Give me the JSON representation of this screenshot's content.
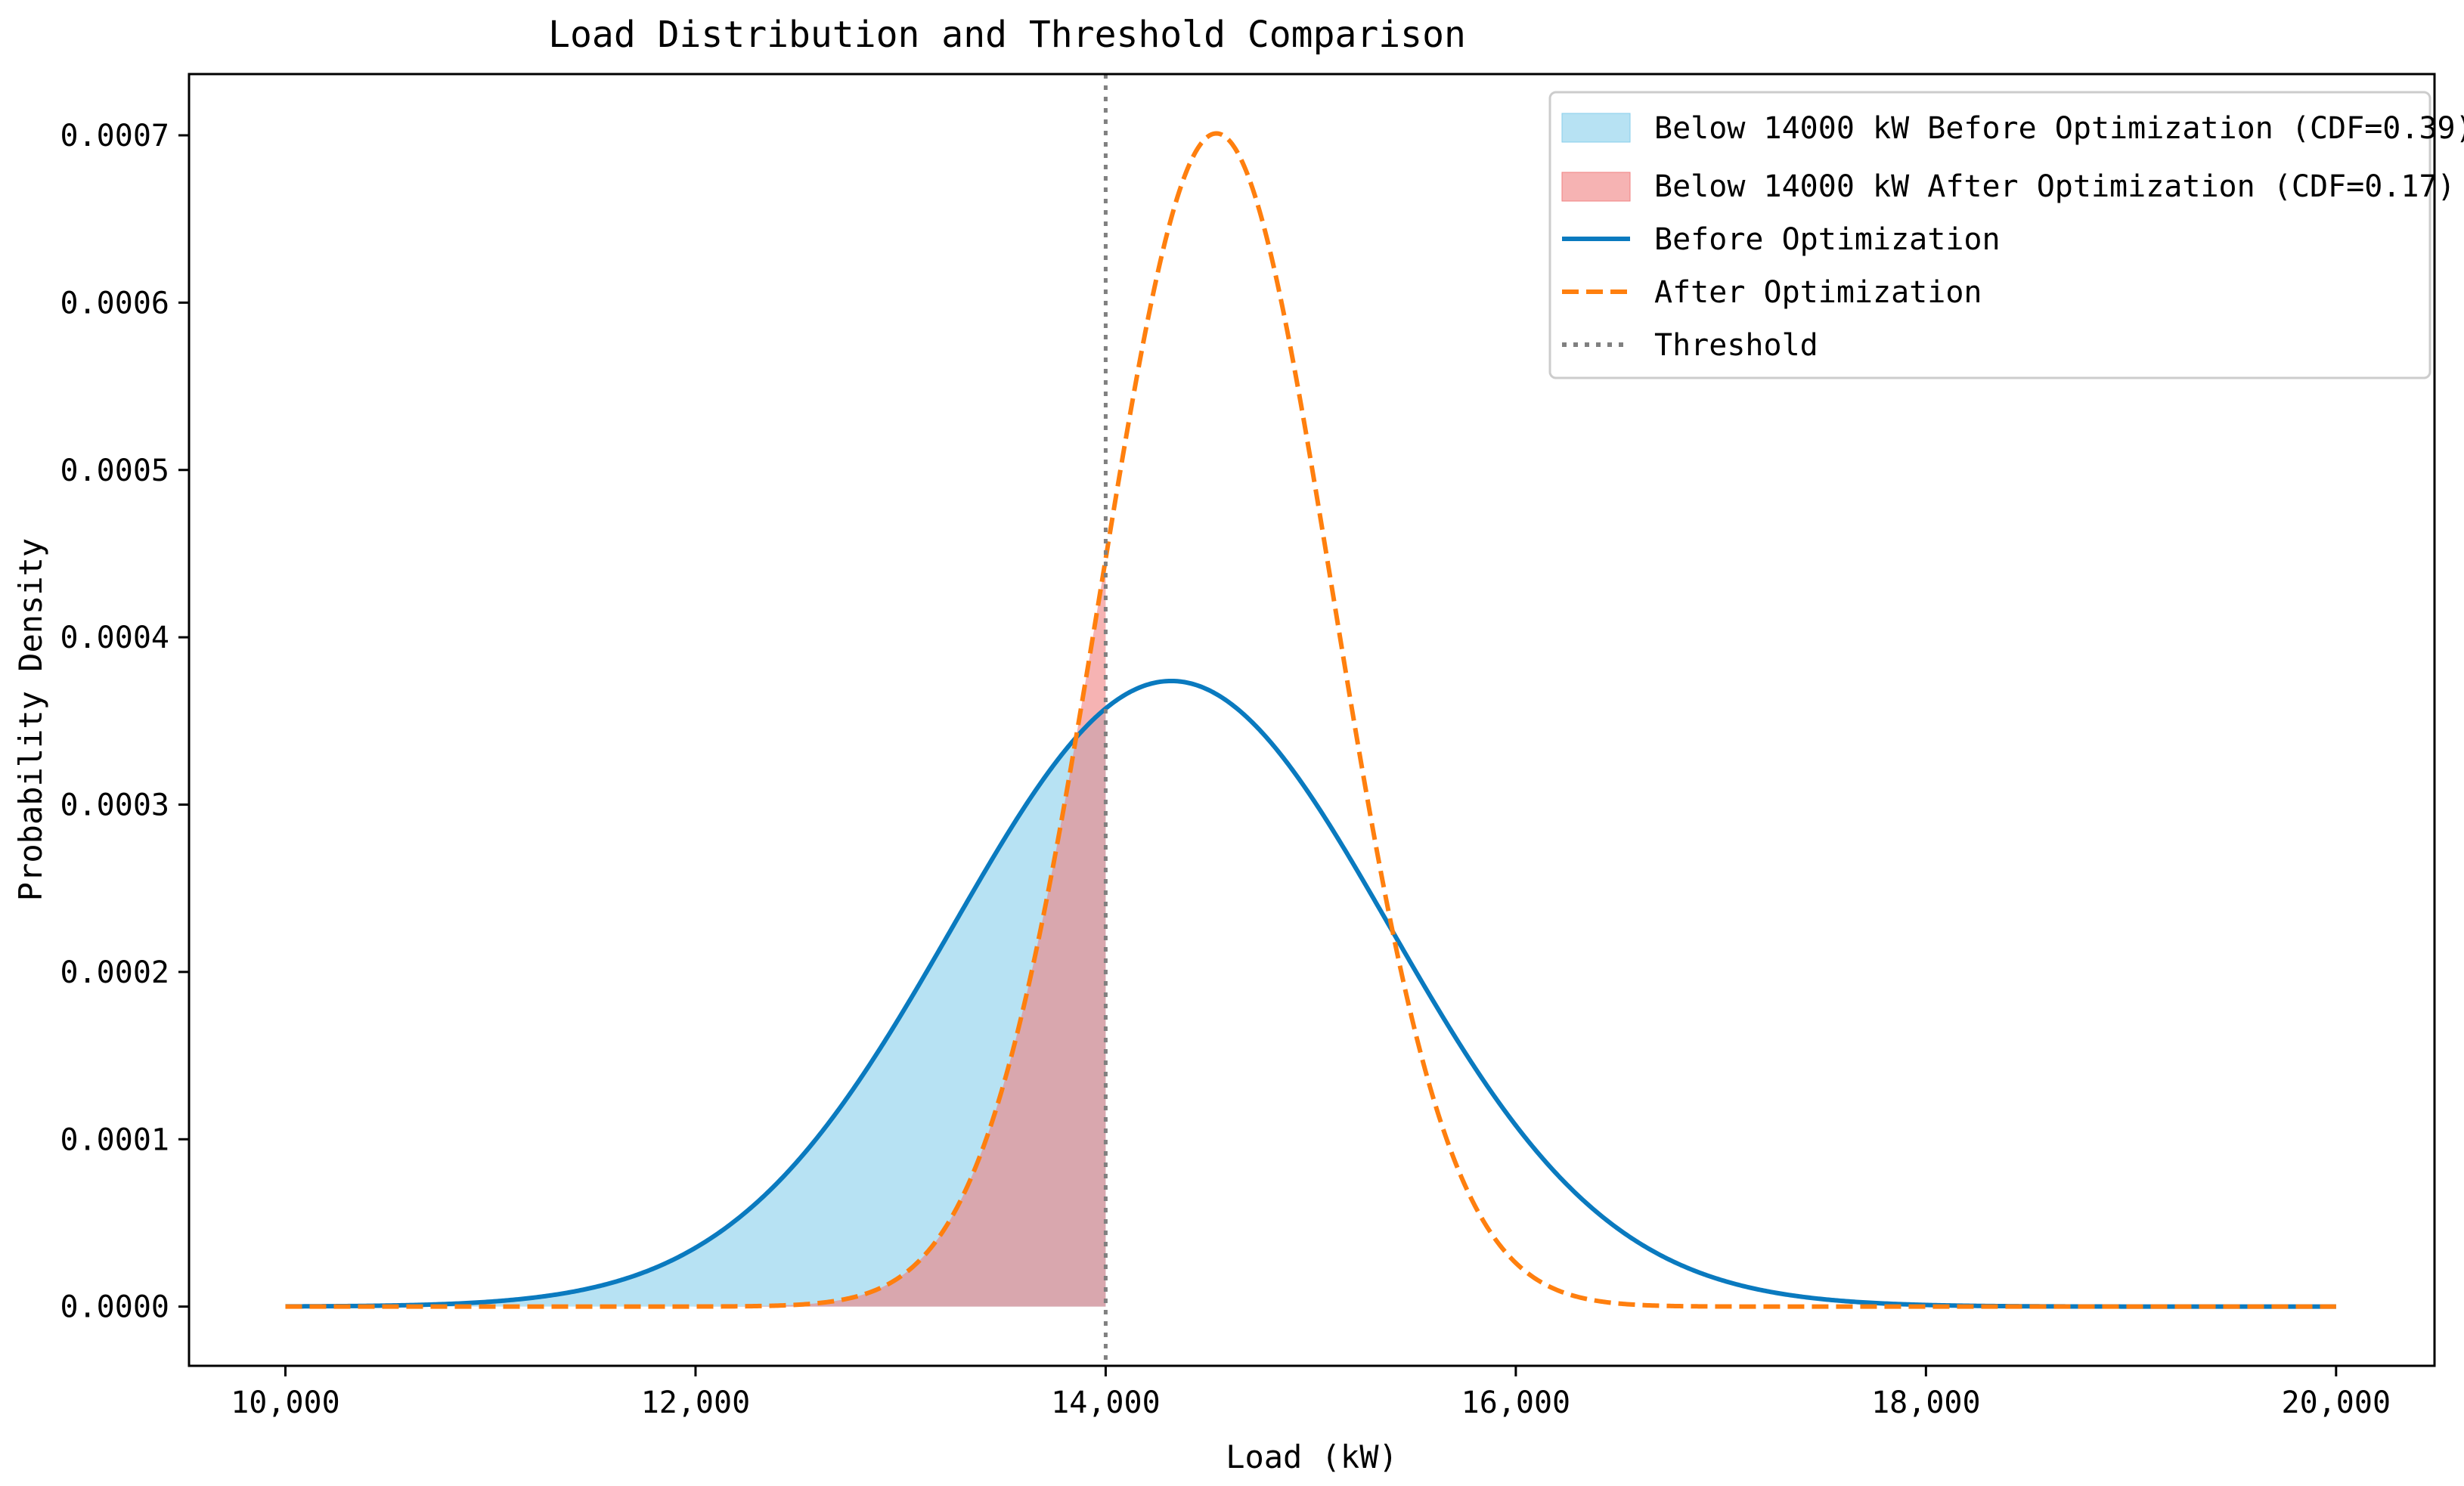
{
  "chart_data": {
    "type": "line",
    "title": "Load Distribution and Threshold Comparison",
    "xlabel": "Load (kW)",
    "ylabel": "Probability Density",
    "xlim": [
      9530,
      20480
    ],
    "ylim": [
      -3.54e-05,
      0.0007366
    ],
    "x_ticks": [
      10000,
      12000,
      14000,
      16000,
      18000,
      20000
    ],
    "x_tick_labels": [
      "10,000",
      "12,000",
      "14,000",
      "16,000",
      "18,000",
      "20,000"
    ],
    "y_ticks": [
      0,
      0.0001,
      0.0002,
      0.0003,
      0.0004,
      0.0005,
      0.0006,
      0.0007
    ],
    "y_tick_labels": [
      "0.0000",
      "0.0001",
      "0.0002",
      "0.0003",
      "0.0004",
      "0.0005",
      "0.0006",
      "0.0007"
    ],
    "grid": false,
    "legend_position": "top-right",
    "x_range": [
      10000,
      20000
    ],
    "threshold": 14000,
    "series": [
      {
        "name": "Before Optimization",
        "distribution": "normal",
        "mean": 14320,
        "std": 1067,
        "color": "#0a7abf",
        "style": "solid"
      },
      {
        "name": "After Optimization",
        "distribution": "normal",
        "mean": 14540,
        "std": 569,
        "color": "#ff7f0e",
        "style": "dashed"
      }
    ],
    "fills": [
      {
        "name": "Below 14000 kW Before Optimization (CDF=0.39)",
        "series": 0,
        "from": 10000,
        "to": 14000,
        "color": "#87ceeb",
        "opacity": 0.6
      },
      {
        "name": "Below 14000 kW After Optimization (CDF=0.17)",
        "series": 1,
        "from": 10000,
        "to": 14000,
        "color": "#f08080",
        "opacity": 0.6
      }
    ],
    "threshold_line": {
      "name": "Threshold",
      "x": 14000,
      "color": "#808080",
      "style": "dotted"
    },
    "legend": [
      "Below 14000 kW Before Optimization (CDF=0.39)",
      "Below 14000 kW After Optimization (CDF=0.17)",
      "Before Optimization",
      "After Optimization",
      "Threshold"
    ]
  }
}
